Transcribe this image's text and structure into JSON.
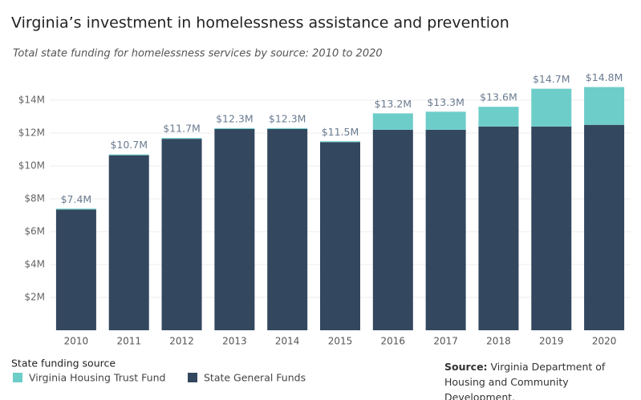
{
  "chart_data": {
    "type": "stacked-bar",
    "title": "Virginia’s investment in homelessness assistance and prevention",
    "subtitle": "Total state funding for homelessness services by source: 2010 to 2020",
    "categories": [
      "2010",
      "2011",
      "2012",
      "2013",
      "2014",
      "2015",
      "2016",
      "2017",
      "2018",
      "2019",
      "2020"
    ],
    "series": [
      {
        "name": "State General Funds",
        "color": "#33475f",
        "values": [
          7.35,
          10.65,
          11.65,
          12.25,
          12.25,
          11.45,
          12.2,
          12.2,
          12.4,
          12.4,
          12.5
        ]
      },
      {
        "name": "Virginia Housing Trust Fund",
        "color": "#6dcdc9",
        "values": [
          0.05,
          0.05,
          0.05,
          0.05,
          0.05,
          0.05,
          1.0,
          1.1,
          1.2,
          2.3,
          2.3
        ]
      }
    ],
    "totals": {
      "values": [
        7.4,
        10.7,
        11.7,
        12.3,
        12.3,
        11.5,
        13.2,
        13.3,
        13.6,
        14.7,
        14.8
      ],
      "value_labels": [
        "$7.4M",
        "$10.7M",
        "$11.7M",
        "$12.3M",
        "$12.3M",
        "$11.5M",
        "$13.2M",
        "$13.3M",
        "$13.6M",
        "$14.7M",
        "$14.8M"
      ]
    },
    "ylim": [
      0,
      16
    ],
    "yticks": [
      {
        "value": 2,
        "label": "$2M"
      },
      {
        "value": 4,
        "label": "$4M"
      },
      {
        "value": 6,
        "label": "$6M"
      },
      {
        "value": 8,
        "label": "$8M"
      },
      {
        "value": 10,
        "label": "$10M"
      },
      {
        "value": 12,
        "label": "$12M"
      },
      {
        "value": 14,
        "label": "$14M"
      }
    ],
    "grid": true,
    "legend_title": "State funding source",
    "source_label": "Source:",
    "source_text": "Virginia Department of Housing and Community Development."
  }
}
